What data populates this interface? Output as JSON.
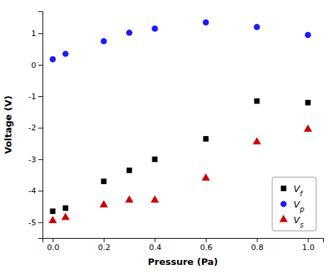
{
  "chart_data": {
    "type": "scatter",
    "xlabel": "Pressure (Pa)",
    "ylabel": "Voltage (V)",
    "series": [
      {
        "name": "Vf",
        "color": "#000000",
        "marker": "square",
        "x": [
          0.0,
          0.05,
          0.2,
          0.3,
          0.4,
          0.6,
          0.8,
          1.0
        ],
        "values": [
          -4.65,
          -4.55,
          -3.7,
          -3.35,
          -3.0,
          -2.35,
          -1.15,
          -1.2
        ]
      },
      {
        "name": "Vp",
        "color": "#1a1aff",
        "marker": "circle",
        "x": [
          0.0,
          0.05,
          0.2,
          0.3,
          0.4,
          0.6,
          0.8,
          1.0
        ],
        "values": [
          0.18,
          0.35,
          0.75,
          1.02,
          1.15,
          1.35,
          1.2,
          0.95
        ]
      },
      {
        "name": "Vs",
        "color": "#cc0000",
        "marker": "triangle",
        "x": [
          0.0,
          0.05,
          0.2,
          0.3,
          0.4,
          0.6,
          0.8,
          1.0
        ],
        "values": [
          -4.95,
          -4.85,
          -4.45,
          -4.3,
          -4.3,
          -3.6,
          -2.45,
          -2.05
        ]
      }
    ],
    "xlim": [
      -0.04,
      1.06
    ],
    "ylim": [
      -5.5,
      1.7
    ],
    "xticks": [
      {
        "value": 0.0,
        "label": "0.0"
      },
      0.2,
      0.4,
      0.6,
      0.8,
      {
        "value": 1.0,
        "label": "1.0"
      }
    ],
    "yticks": [
      -5,
      -4,
      -3,
      -2,
      -1,
      0,
      1
    ],
    "legend": "lower right",
    "grid": false
  }
}
